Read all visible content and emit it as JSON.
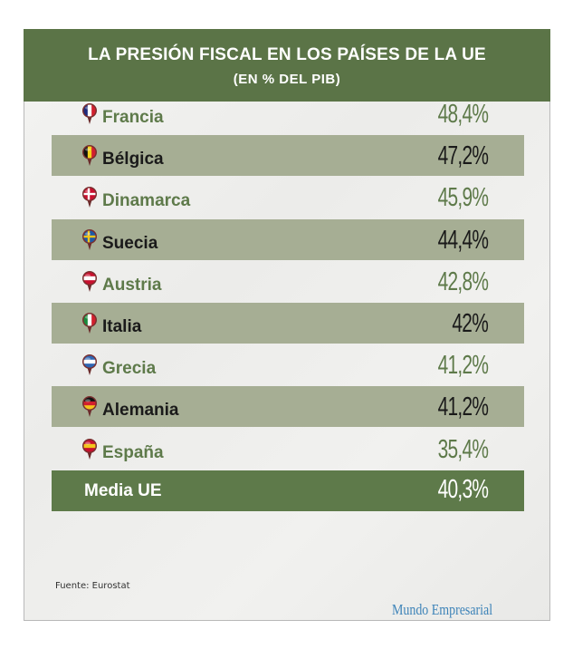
{
  "chart_data": {
    "type": "table",
    "title": "LA PRESIÓN FISCAL EN LOS PAÍSES DE LA UE",
    "subtitle": "(EN % DEL PIB)",
    "rows": [
      {
        "country": "Francia",
        "value": "48,4%",
        "flag": [
          "#1f2b7c",
          "#ffffff",
          "#d21f2e"
        ],
        "flag_dir": "v",
        "shaded": false
      },
      {
        "country": "Bélgica",
        "value": "47,2%",
        "flag": [
          "#111111",
          "#f4d21c",
          "#d21f2e"
        ],
        "flag_dir": "v",
        "shaded": true
      },
      {
        "country": "Dinamarca",
        "value": "45,9%",
        "flag": [
          "#c8102e",
          "#ffffff"
        ],
        "flag_dir": "cross",
        "shaded": false
      },
      {
        "country": "Suecia",
        "value": "44,4%",
        "flag": [
          "#1f5aa6",
          "#f4c51c"
        ],
        "flag_dir": "cross",
        "shaded": true
      },
      {
        "country": "Austria",
        "value": "42,8%",
        "flag": [
          "#c8102e",
          "#ffffff",
          "#c8102e"
        ],
        "flag_dir": "h",
        "shaded": false
      },
      {
        "country": "Italia",
        "value": "42%",
        "flag": [
          "#1a8a3c",
          "#ffffff",
          "#d21f2e"
        ],
        "flag_dir": "v",
        "shaded": true
      },
      {
        "country": "Grecia",
        "value": "41,2%",
        "flag": [
          "#2f66b3",
          "#ffffff",
          "#2f66b3"
        ],
        "flag_dir": "h",
        "shaded": false
      },
      {
        "country": "Alemania",
        "value": "41,2%",
        "flag": [
          "#111111",
          "#d21f2e",
          "#f4c51c"
        ],
        "flag_dir": "h",
        "shaded": true
      },
      {
        "country": "España",
        "value": "35,4%",
        "flag": [
          "#c8102e",
          "#f4c51c",
          "#c8102e"
        ],
        "flag_dir": "h",
        "shaded": false
      }
    ],
    "average": {
      "label": "Media UE",
      "value": "40,3%"
    },
    "source": "Fuente: Eurostat",
    "brand": "Mundo Empresarial",
    "colors": {
      "header": "#5b7447",
      "accent": "#5e7a4a",
      "shaded_row": "#a6ae94",
      "brand": "#3d83b8"
    }
  }
}
